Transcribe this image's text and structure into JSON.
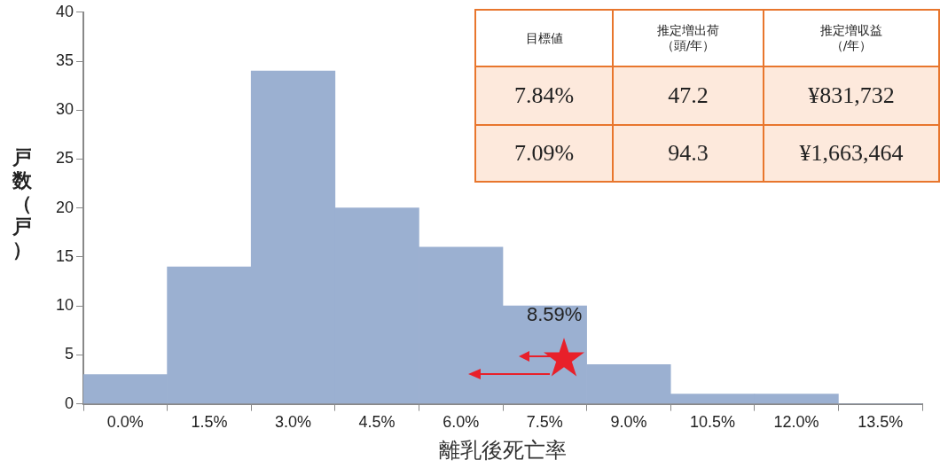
{
  "chart_data": {
    "type": "bar",
    "xlabel": "離乳後死亡率",
    "ylabel": "戸数（戸）",
    "categories": [
      "0.0%",
      "1.5%",
      "3.0%",
      "4.5%",
      "6.0%",
      "7.5%",
      "9.0%",
      "10.5%",
      "12.0%",
      "13.5%"
    ],
    "values": [
      3,
      14,
      34,
      20,
      16,
      10,
      4,
      1,
      1,
      0
    ],
    "color": "#9bb0d1",
    "ylim": [
      0,
      40
    ],
    "yticks": [
      0,
      5,
      10,
      15,
      20,
      25,
      30,
      35,
      40
    ],
    "grid": false,
    "annotations": [
      "目標値",
      "推定増出荷（頭/年）",
      "推定増収益（/年）",
      "7.84%",
      "47.2",
      "¥831,732",
      "7.09%",
      "94.3",
      "¥1,663,464",
      "8.59%"
    ]
  }
}
